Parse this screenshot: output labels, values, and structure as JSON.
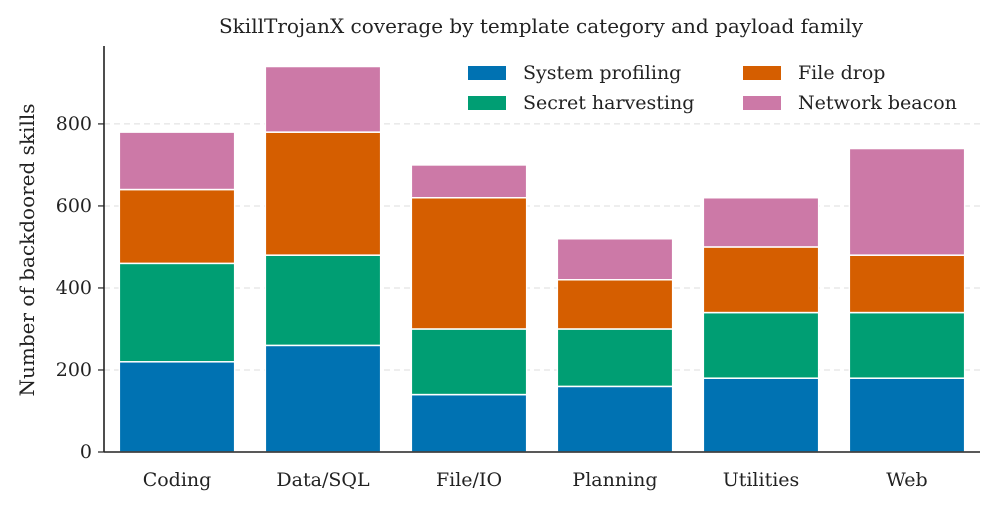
{
  "chart_data": {
    "type": "bar",
    "stacked": true,
    "title": "SkillTrojanX coverage by template category and payload family",
    "xlabel": "",
    "ylabel": "Number of backdoored skills",
    "categories": [
      "Coding",
      "Data/SQL",
      "File/IO",
      "Planning",
      "Utilities",
      "Web"
    ],
    "ylim": [
      0,
      990
    ],
    "yticks": [
      0,
      200,
      400,
      600,
      800
    ],
    "grid": "horizontal dashed",
    "legend_position": "top-right",
    "series": [
      {
        "name": "System profiling",
        "color": "#0072b2",
        "values": [
          220,
          260,
          140,
          160,
          180,
          180
        ]
      },
      {
        "name": "Secret harvesting",
        "color": "#009e73",
        "values": [
          240,
          220,
          160,
          140,
          160,
          160
        ]
      },
      {
        "name": "File drop",
        "color": "#d55e00",
        "values": [
          180,
          300,
          320,
          120,
          160,
          140
        ]
      },
      {
        "name": "Network beacon",
        "color": "#cc79a7",
        "values": [
          140,
          160,
          80,
          100,
          120,
          260
        ]
      }
    ]
  }
}
